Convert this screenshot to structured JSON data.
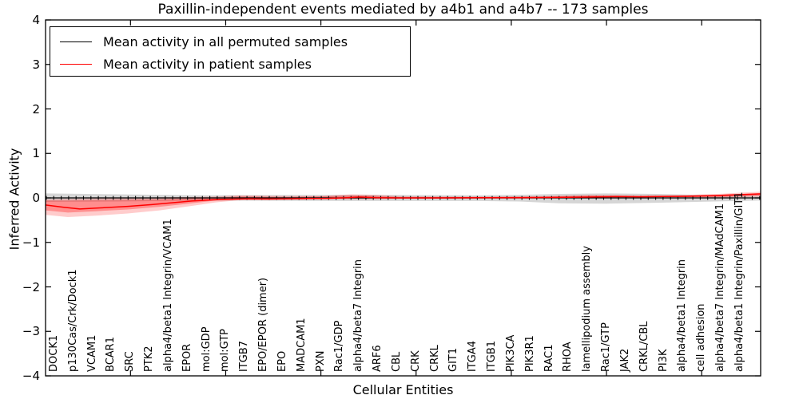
{
  "figure": {
    "title": "Paxillin-independent events mediated by a4b1 and a4b7 -- 173 samples",
    "xlabel": "Cellular Entities",
    "ylabel": "Inferred Activity"
  },
  "legend": {
    "items": [
      {
        "label": "Mean activity in all permuted samples",
        "color": "#000000"
      },
      {
        "label": "Mean activity in patient samples",
        "color": "#ff0000"
      }
    ]
  },
  "chart_data": {
    "type": "line",
    "title": "Paxillin-independent events mediated by a4b1 and a4b7 -- 173 samples",
    "xlabel": "Cellular Entities",
    "ylabel": "Inferred Activity",
    "ylim": [
      -4,
      4
    ],
    "yticks": [
      4,
      3,
      2,
      1,
      0,
      -1,
      -2,
      -3,
      -4
    ],
    "grid": false,
    "legend_position": "upper left",
    "categories": [
      "DOCK1",
      "p130Cas/Crk/Dock1",
      "VCAM1",
      "BCAR1",
      "SRC",
      "PTK2",
      "alpha4/beta1 Integrin/VCAM1",
      "EPOR",
      "mol:GDP",
      "mol:GTP",
      "ITGB7",
      "EPO/EPOR (dimer)",
      "EPO",
      "MADCAM1",
      "PXN",
      "Rac1/GDP",
      "alpha4/beta7 Integrin",
      "ARF6",
      "CBL",
      "CRK",
      "CRKL",
      "GIT1",
      "ITGA4",
      "ITGB1",
      "PIK3CA",
      "PIK3R1",
      "RAC1",
      "RHOA",
      "lamellipodium assembly",
      "Rac1/GTP",
      "JAK2",
      "CRKL/CBL",
      "PI3K",
      "alpha4/beta1 Integrin",
      "cell adhesion",
      "alpha4/beta7 Integrin/MAdCAM1",
      "alpha4/beta1 Integrin/Paxillin/GIT1"
    ],
    "major_tick_indices": [
      4,
      9,
      14,
      19,
      24,
      29,
      34
    ],
    "series": [
      {
        "name": "Mean activity in all permuted samples",
        "color": "#000000",
        "values": [
          0,
          0,
          0,
          0,
          0,
          0,
          0,
          0,
          0,
          0,
          0,
          0,
          0,
          0,
          0,
          0,
          0,
          0,
          0,
          0,
          0,
          0,
          0,
          0,
          0,
          0,
          0,
          0,
          0,
          0,
          0,
          0,
          0,
          0,
          0,
          0,
          0
        ]
      },
      {
        "name": "Mean activity in patient samples",
        "color": "#ff0000",
        "values": [
          -0.18,
          -0.24,
          -0.23,
          -0.21,
          -0.18,
          -0.14,
          -0.1,
          -0.06,
          -0.04,
          -0.02,
          -0.02,
          -0.02,
          -0.02,
          -0.01,
          -0.01,
          0.0,
          0.02,
          0.0,
          0.0,
          0.0,
          0.0,
          0.0,
          0.0,
          0.0,
          0.0,
          0.01,
          0.01,
          0.01,
          0.01,
          0.03,
          0.03,
          0.03,
          0.03,
          0.04,
          0.04,
          0.06,
          0.08
        ]
      }
    ],
    "patient_curve": [
      [
        -0.46,
        -0.16
      ],
      [
        0.5,
        -0.21
      ],
      [
        1.34,
        -0.25
      ],
      [
        2.6,
        -0.22
      ],
      [
        3.86,
        -0.19
      ],
      [
        5.12,
        -0.15
      ],
      [
        6.17,
        -0.11
      ],
      [
        7.22,
        -0.07
      ],
      [
        8.27,
        -0.045
      ],
      [
        9.1,
        -0.03
      ],
      [
        10.2,
        -0.02
      ],
      [
        11.2,
        -0.025
      ],
      [
        12.25,
        -0.02
      ],
      [
        13.3,
        -0.015
      ],
      [
        14.35,
        -0.01
      ],
      [
        15.4,
        0.005
      ],
      [
        16.03,
        0.02
      ],
      [
        16.9,
        0.005
      ],
      [
        18.13,
        0.0
      ],
      [
        20.0,
        0.0
      ],
      [
        22.3,
        0.005
      ],
      [
        24.4,
        0.005
      ],
      [
        26.5,
        0.01
      ],
      [
        28.2,
        0.02
      ],
      [
        29.5,
        0.03
      ],
      [
        30.7,
        0.025
      ],
      [
        32.0,
        0.03
      ],
      [
        33.2,
        0.035
      ],
      [
        34.5,
        0.05
      ],
      [
        35.7,
        0.07
      ],
      [
        37.1,
        0.09
      ]
    ],
    "bands": {
      "permuted": {
        "color": "#000000",
        "opacity": 0.16,
        "points": [
          {
            "x": -0.46,
            "top": 0.1,
            "bot": -0.09
          },
          {
            "x": 3.44,
            "top": 0.08,
            "bot": -0.08
          },
          {
            "x": 7.64,
            "top": 0.06,
            "bot": -0.06
          },
          {
            "x": 16.03,
            "top": 0.07,
            "bot": -0.07
          },
          {
            "x": 22.32,
            "top": 0.06,
            "bot": -0.07
          },
          {
            "x": 24.4,
            "top": 0.07,
            "bot": -0.08
          },
          {
            "x": 26.5,
            "top": 0.09,
            "bot": -0.12
          },
          {
            "x": 29.0,
            "top": 0.1,
            "bot": -0.13
          },
          {
            "x": 31.6,
            "top": 0.09,
            "bot": -0.11
          },
          {
            "x": 33.7,
            "top": 0.07,
            "bot": -0.09
          },
          {
            "x": 37.1,
            "top": 0.06,
            "bot": -0.06
          }
        ]
      },
      "patient_outer": {
        "color": "#ff0000",
        "opacity": 0.2,
        "points": [
          {
            "x": -0.46,
            "top": -0.03,
            "bot": -0.38
          },
          {
            "x": 0.71,
            "top": -0.02,
            "bot": -0.43
          },
          {
            "x": 2.18,
            "top": -0.01,
            "bot": -0.4
          },
          {
            "x": 3.86,
            "top": 0.0,
            "bot": -0.35
          },
          {
            "x": 5.54,
            "top": 0.01,
            "bot": -0.28
          },
          {
            "x": 7.22,
            "top": 0.02,
            "bot": -0.18
          },
          {
            "x": 8.48,
            "top": 0.03,
            "bot": -0.1
          },
          {
            "x": 9.74,
            "top": 0.06,
            "bot": -0.05
          },
          {
            "x": 11.0,
            "top": 0.05,
            "bot": -0.05
          },
          {
            "x": 12.25,
            "top": 0.04,
            "bot": -0.04
          },
          {
            "x": 13.93,
            "top": 0.04,
            "bot": -0.03
          },
          {
            "x": 15.61,
            "top": 0.08,
            "bot": -0.03
          },
          {
            "x": 16.87,
            "top": 0.07,
            "bot": -0.03
          },
          {
            "x": 18.13,
            "top": 0.04,
            "bot": -0.02
          },
          {
            "x": 20.65,
            "top": 0.03,
            "bot": -0.02
          },
          {
            "x": 23.16,
            "top": 0.03,
            "bot": -0.02
          },
          {
            "x": 25.68,
            "top": 0.04,
            "bot": -0.01
          },
          {
            "x": 28.2,
            "top": 0.07,
            "bot": -0.01
          },
          {
            "x": 30.72,
            "top": 0.06,
            "bot": 0.0
          },
          {
            "x": 33.23,
            "top": 0.07,
            "bot": 0.01
          },
          {
            "x": 34.91,
            "top": 0.09,
            "bot": 0.01
          },
          {
            "x": 36.17,
            "top": 0.12,
            "bot": 0.02
          },
          {
            "x": 37.1,
            "top": 0.14,
            "bot": 0.03
          }
        ]
      },
      "patient_inner": {
        "color": "#ff0000",
        "opacity": 0.3,
        "points": [
          {
            "x": -0.46,
            "top": -0.06,
            "bot": -0.28
          },
          {
            "x": 0.71,
            "top": -0.06,
            "bot": -0.33
          },
          {
            "x": 2.18,
            "top": -0.05,
            "bot": -0.3
          },
          {
            "x": 3.86,
            "top": -0.04,
            "bot": -0.26
          },
          {
            "x": 5.54,
            "top": -0.03,
            "bot": -0.2
          },
          {
            "x": 7.22,
            "top": -0.01,
            "bot": -0.12
          },
          {
            "x": 8.48,
            "top": 0.0,
            "bot": -0.06
          },
          {
            "x": 9.74,
            "top": 0.03,
            "bot": -0.03
          },
          {
            "x": 12.25,
            "top": 0.02,
            "bot": -0.03
          },
          {
            "x": 15.61,
            "top": 0.05,
            "bot": -0.01
          },
          {
            "x": 16.87,
            "top": 0.04,
            "bot": -0.01
          },
          {
            "x": 18.13,
            "top": 0.02,
            "bot": -0.01
          },
          {
            "x": 22.0,
            "top": 0.02,
            "bot": -0.01
          },
          {
            "x": 25.68,
            "top": 0.03,
            "bot": 0.0
          },
          {
            "x": 28.2,
            "top": 0.05,
            "bot": 0.005
          },
          {
            "x": 30.72,
            "top": 0.04,
            "bot": 0.01
          },
          {
            "x": 33.23,
            "top": 0.05,
            "bot": 0.02
          },
          {
            "x": 34.91,
            "top": 0.07,
            "bot": 0.02
          },
          {
            "x": 36.17,
            "top": 0.09,
            "bot": 0.04
          },
          {
            "x": 37.1,
            "top": 0.11,
            "bot": 0.05
          }
        ]
      }
    }
  }
}
